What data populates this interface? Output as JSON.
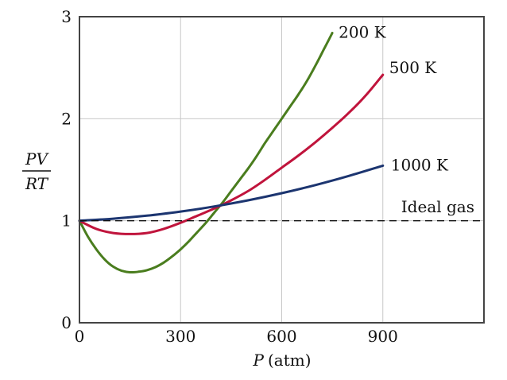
{
  "chart_data": {
    "type": "line",
    "title": "",
    "xlabel": {
      "symbol": "P",
      "unit": "(atm)"
    },
    "ylabel": {
      "numerator": "PV",
      "denominator": "RT"
    },
    "xlim": [
      0,
      1200
    ],
    "ylim": [
      0,
      3
    ],
    "xticks": [
      0,
      300,
      600,
      900
    ],
    "yticks": [
      0,
      1,
      2,
      3
    ],
    "grid": true,
    "series": [
      {
        "name": "200 K",
        "color": "#4a7d1e",
        "x": [
          0,
          25,
          50,
          75,
          100,
          125,
          150,
          175,
          200,
          225,
          250,
          275,
          300,
          325,
          350,
          375,
          400,
          425,
          450,
          475,
          500,
          525,
          550,
          575,
          600,
          625,
          650,
          675,
          700,
          725,
          750
        ],
        "y": [
          1.0,
          0.845,
          0.72,
          0.62,
          0.55,
          0.51,
          0.495,
          0.5,
          0.515,
          0.545,
          0.59,
          0.65,
          0.72,
          0.8,
          0.89,
          0.98,
          1.08,
          1.18,
          1.29,
          1.4,
          1.51,
          1.63,
          1.76,
          1.88,
          2.0,
          2.12,
          2.24,
          2.37,
          2.52,
          2.68,
          2.84
        ]
      },
      {
        "name": "500 K",
        "color": "#c0143c",
        "x": [
          0,
          50,
          100,
          150,
          200,
          250,
          300,
          350,
          400,
          450,
          500,
          550,
          600,
          650,
          700,
          750,
          800,
          850,
          900
        ],
        "y": [
          1.0,
          0.92,
          0.88,
          0.87,
          0.88,
          0.92,
          0.98,
          1.05,
          1.12,
          1.2,
          1.29,
          1.4,
          1.52,
          1.64,
          1.77,
          1.91,
          2.06,
          2.23,
          2.43
        ]
      },
      {
        "name": "1000 K",
        "color": "#1c3570",
        "x": [
          0,
          100,
          200,
          300,
          400,
          500,
          600,
          700,
          800,
          900
        ],
        "y": [
          1.0,
          1.02,
          1.05,
          1.09,
          1.14,
          1.2,
          1.27,
          1.35,
          1.44,
          1.54
        ]
      },
      {
        "name": "Ideal gas",
        "color": "#111111",
        "dashed": true,
        "x": [
          0,
          1200
        ],
        "y": [
          1.0,
          1.0
        ]
      }
    ]
  }
}
